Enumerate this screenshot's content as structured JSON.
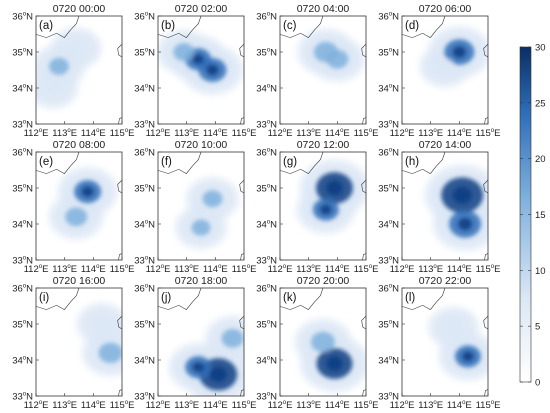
{
  "figure": {
    "panels": [
      {
        "letter": "(a)",
        "title": "0720 00:00"
      },
      {
        "letter": "(b)",
        "title": "0720 02:00"
      },
      {
        "letter": "(c)",
        "title": "0720 04:00"
      },
      {
        "letter": "(d)",
        "title": "0720 06:00"
      },
      {
        "letter": "(e)",
        "title": "0720 08:00"
      },
      {
        "letter": "(f)",
        "title": "0720 10:00"
      },
      {
        "letter": "(g)",
        "title": "0720 12:00"
      },
      {
        "letter": "(h)",
        "title": "0720 14:00"
      },
      {
        "letter": "(i)",
        "title": "0720 16:00"
      },
      {
        "letter": "(j)",
        "title": "0720 18:00"
      },
      {
        "letter": "(k)",
        "title": "0720 20:00"
      },
      {
        "letter": "(l)",
        "title": "0720 22:00"
      }
    ],
    "x_ticks": [
      {
        "value": "112",
        "suffix": "E"
      },
      {
        "value": "113",
        "suffix": "E"
      },
      {
        "value": "114",
        "suffix": "E"
      },
      {
        "value": "115",
        "suffix": "E"
      }
    ],
    "y_ticks": [
      {
        "value": "36",
        "suffix": "N"
      },
      {
        "value": "35",
        "suffix": "N"
      },
      {
        "value": "34",
        "suffix": "N"
      },
      {
        "value": "33",
        "suffix": "N"
      }
    ],
    "degree_symbol": "o",
    "colorbar": {
      "ticks": [
        "30",
        "25",
        "20",
        "15",
        "10",
        "5",
        "0"
      ],
      "color_low": "#ffffff",
      "color_high": "#0a2f66"
    },
    "colors": {
      "light": "#dbe7f5",
      "medium": "#7fb0dd",
      "strong": "#2f6fba",
      "dark": "#103e84"
    }
  },
  "chart_data": {
    "type": "heatmap",
    "xlim": [
      112,
      115
    ],
    "ylim": [
      33,
      36
    ],
    "value_range": [
      0,
      30
    ],
    "panels": [
      {
        "title": "0720 00:00",
        "blobs": [
          {
            "lon": 112.8,
            "lat": 34.6,
            "value": 8
          },
          {
            "lon": 113.4,
            "lat": 35.1,
            "value": 6
          },
          {
            "lon": 112.6,
            "lat": 34.0,
            "value": 5
          }
        ]
      },
      {
        "title": "0720 02:00",
        "blobs": [
          {
            "lon": 113.4,
            "lat": 34.8,
            "value": 14
          },
          {
            "lon": 113.9,
            "lat": 34.5,
            "value": 16
          },
          {
            "lon": 112.9,
            "lat": 35.0,
            "value": 9
          }
        ]
      },
      {
        "title": "0720 04:00",
        "blobs": [
          {
            "lon": 113.6,
            "lat": 35.0,
            "value": 12
          },
          {
            "lon": 114.0,
            "lat": 34.8,
            "value": 10
          }
        ]
      },
      {
        "title": "0720 06:00",
        "blobs": [
          {
            "lon": 114.0,
            "lat": 35.0,
            "value": 18
          },
          {
            "lon": 113.5,
            "lat": 34.6,
            "value": 6
          }
        ]
      },
      {
        "title": "0720 08:00",
        "blobs": [
          {
            "lon": 113.8,
            "lat": 34.9,
            "value": 15
          },
          {
            "lon": 113.4,
            "lat": 34.2,
            "value": 10
          }
        ]
      },
      {
        "title": "0720 10:00",
        "blobs": [
          {
            "lon": 113.9,
            "lat": 34.7,
            "value": 8
          },
          {
            "lon": 113.5,
            "lat": 33.9,
            "value": 7
          }
        ]
      },
      {
        "title": "0720 12:00",
        "blobs": [
          {
            "lon": 113.9,
            "lat": 35.0,
            "value": 25
          },
          {
            "lon": 113.6,
            "lat": 34.4,
            "value": 14
          }
        ]
      },
      {
        "title": "0720 14:00",
        "blobs": [
          {
            "lon": 114.1,
            "lat": 34.8,
            "value": 30
          },
          {
            "lon": 114.2,
            "lat": 34.0,
            "value": 20
          }
        ]
      },
      {
        "title": "0720 16:00",
        "blobs": [
          {
            "lon": 114.6,
            "lat": 34.2,
            "value": 12
          },
          {
            "lon": 114.3,
            "lat": 35.0,
            "value": 6
          }
        ]
      },
      {
        "title": "0720 18:00",
        "blobs": [
          {
            "lon": 114.1,
            "lat": 33.6,
            "value": 26
          },
          {
            "lon": 113.4,
            "lat": 33.8,
            "value": 14
          },
          {
            "lon": 114.6,
            "lat": 34.6,
            "value": 10
          }
        ]
      },
      {
        "title": "0720 20:00",
        "blobs": [
          {
            "lon": 113.9,
            "lat": 33.9,
            "value": 24
          },
          {
            "lon": 113.5,
            "lat": 34.5,
            "value": 12
          }
        ]
      },
      {
        "title": "0720 22:00",
        "blobs": [
          {
            "lon": 114.3,
            "lat": 34.1,
            "value": 14
          },
          {
            "lon": 113.8,
            "lat": 34.9,
            "value": 6
          }
        ]
      }
    ]
  }
}
